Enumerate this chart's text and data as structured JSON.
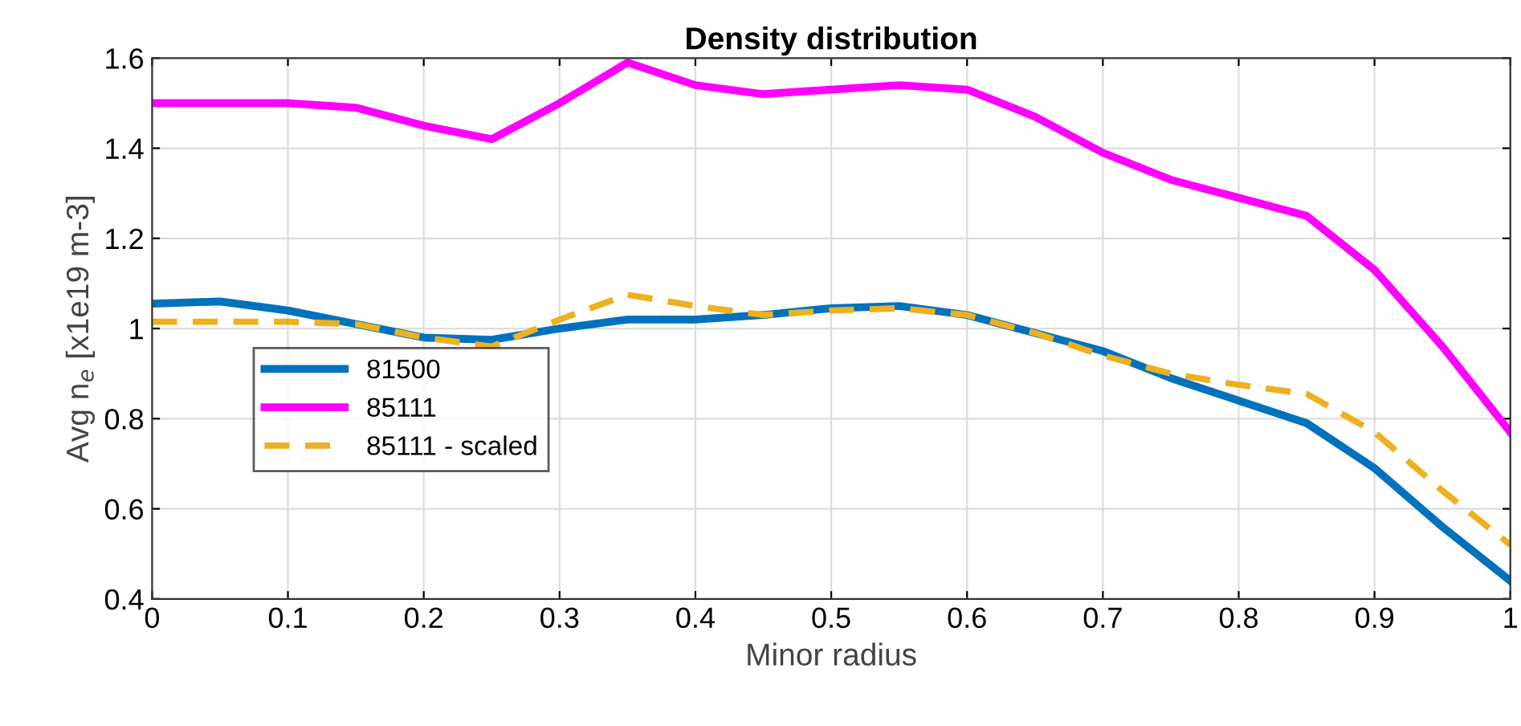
{
  "chart_data": {
    "type": "line",
    "title": "Density distribution",
    "xlabel": "Minor radius",
    "ylabel": "Avg n$_{e}$ [x1e19 m-3]",
    "xlim": [
      0,
      1
    ],
    "ylim": [
      0.4,
      1.6
    ],
    "xticks": [
      0,
      0.1,
      0.2,
      0.3,
      0.4,
      0.5,
      0.6,
      0.7,
      0.8,
      0.9,
      1
    ],
    "yticks": [
      0.4,
      0.6,
      0.8,
      1,
      1.2,
      1.4,
      1.6
    ],
    "grid": true,
    "legend": "center left",
    "x": [
      0,
      0.05,
      0.1,
      0.15,
      0.2,
      0.25,
      0.3,
      0.35,
      0.4,
      0.45,
      0.5,
      0.55,
      0.6,
      0.65,
      0.7,
      0.75,
      0.8,
      0.85,
      0.9,
      0.95,
      1.0
    ],
    "series": [
      {
        "name": "81500",
        "color": "#0072bd",
        "line_style": "solid",
        "values": [
          1.055,
          1.06,
          1.04,
          1.01,
          0.98,
          0.975,
          1.0,
          1.02,
          1.02,
          1.03,
          1.045,
          1.05,
          1.03,
          0.99,
          0.95,
          0.89,
          0.84,
          0.79,
          0.69,
          0.56,
          0.44
        ]
      },
      {
        "name": "85111",
        "color": "#ff00ff",
        "line_style": "solid",
        "values": [
          1.5,
          1.5,
          1.5,
          1.49,
          1.45,
          1.42,
          1.5,
          1.59,
          1.54,
          1.52,
          1.53,
          1.54,
          1.53,
          1.47,
          1.39,
          1.33,
          1.29,
          1.25,
          1.13,
          0.96,
          0.77
        ]
      },
      {
        "name": "85111 - scaled",
        "color": "#edb120",
        "line_style": "dashed",
        "values": [
          1.015,
          1.015,
          1.015,
          1.01,
          0.98,
          0.96,
          1.02,
          1.075,
          1.05,
          1.03,
          1.04,
          1.045,
          1.03,
          0.99,
          0.94,
          0.9,
          0.875,
          0.855,
          0.77,
          0.64,
          0.52
        ]
      }
    ]
  }
}
